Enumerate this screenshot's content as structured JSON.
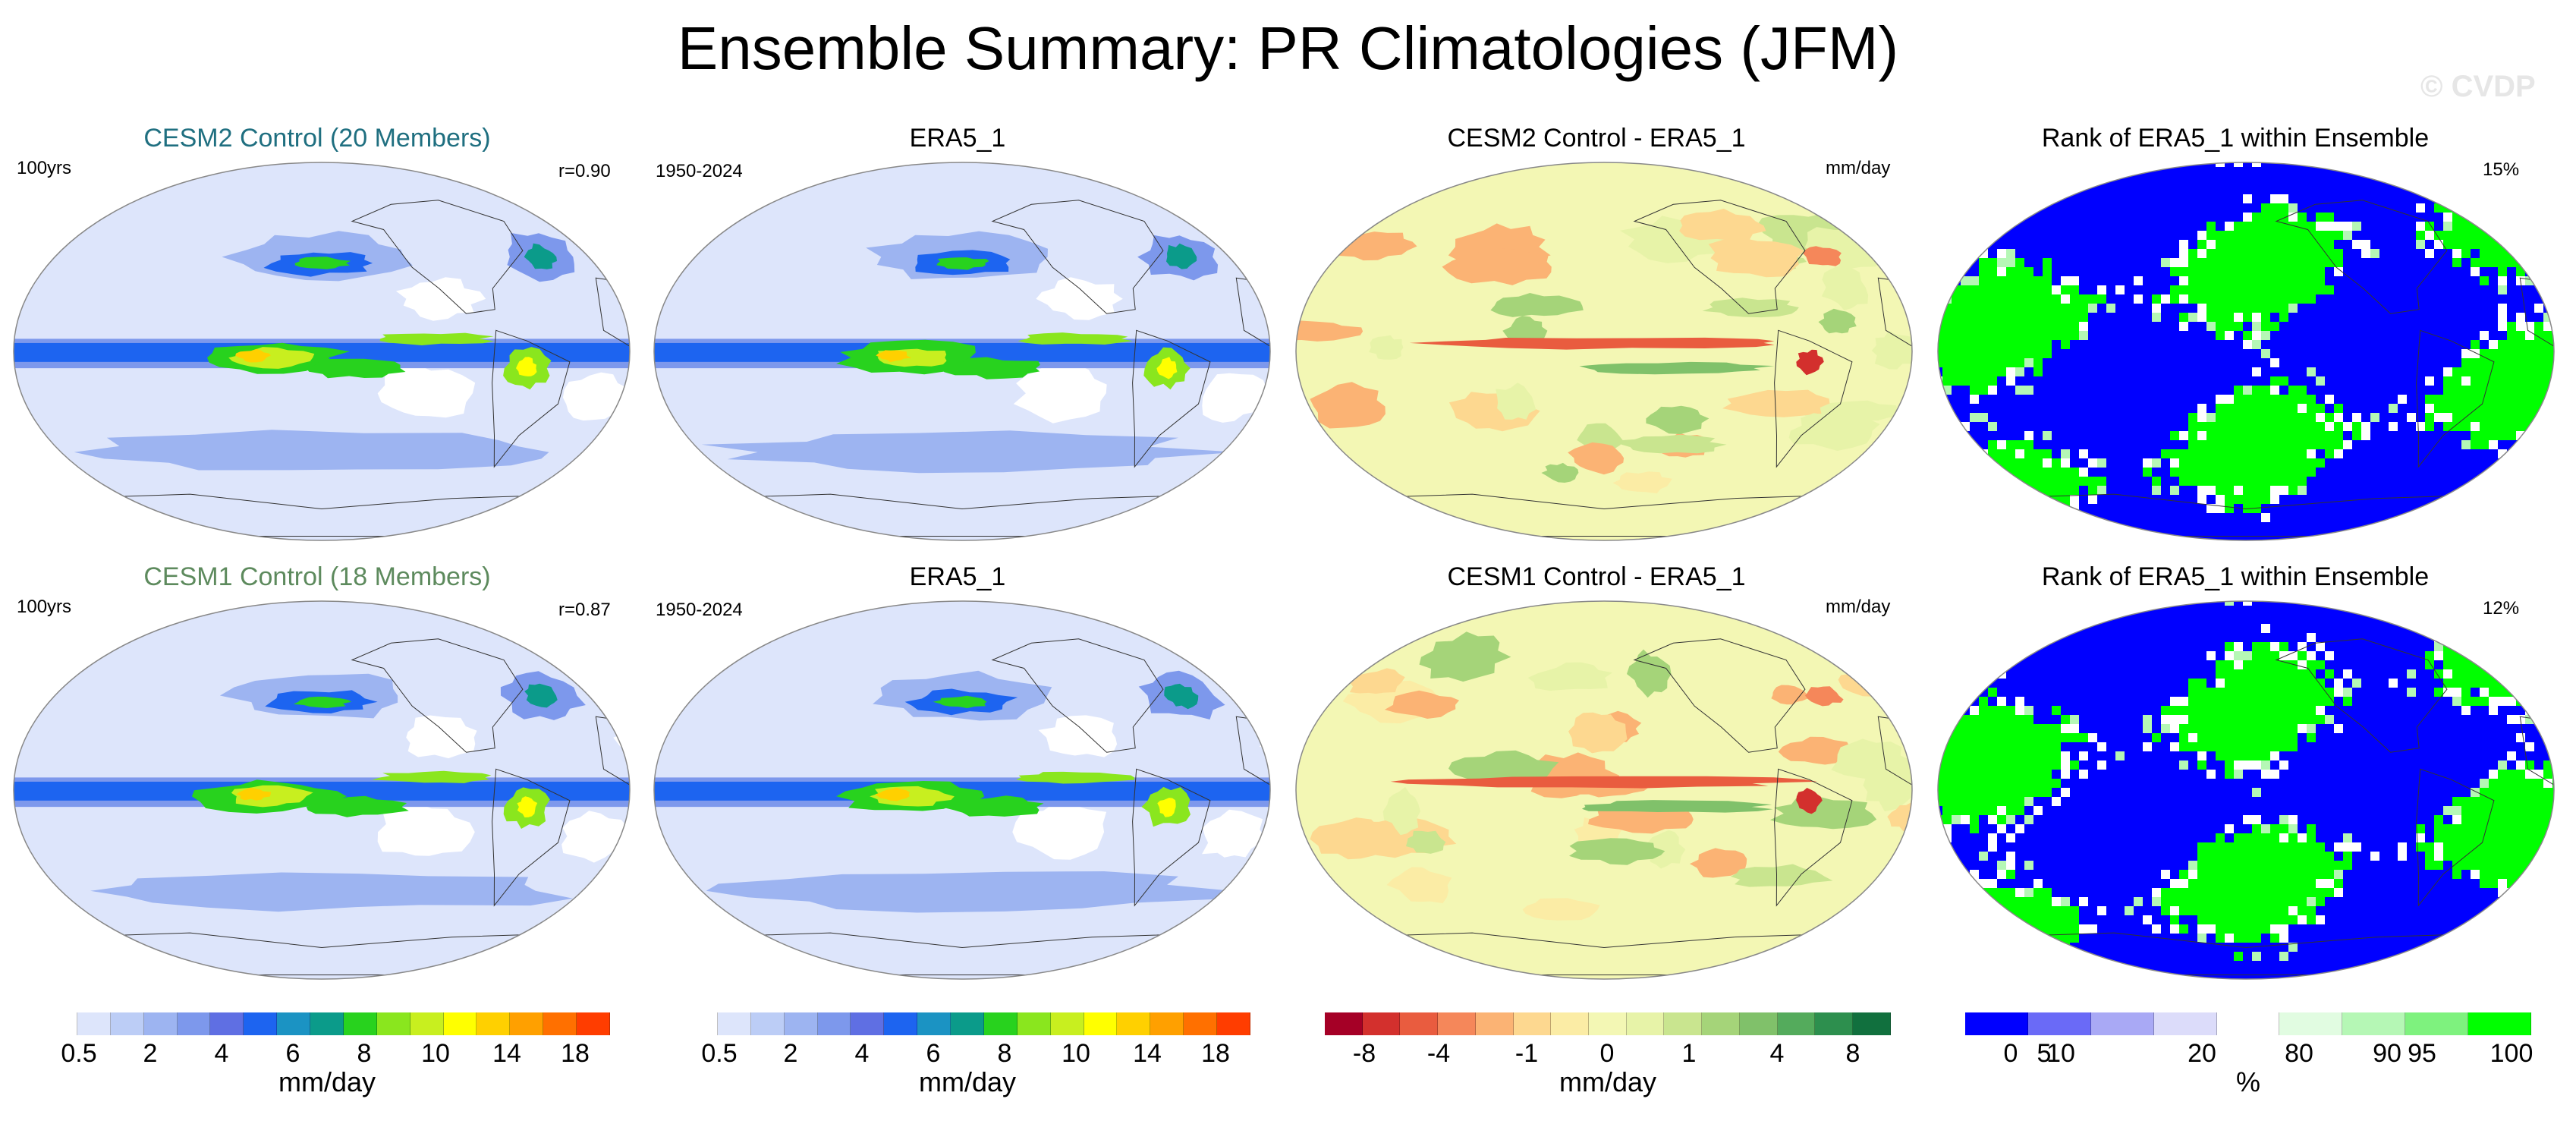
{
  "title": "Ensemble Summary: PR Climatologies (JFM)",
  "watermark": "© CVDP",
  "rows": [
    {
      "panels": [
        {
          "title": "CESM2 Control (20 Members)",
          "title_color": "#1f6f80",
          "left": "100yrs",
          "right": "r=0.90",
          "kind": "pr"
        },
        {
          "title": "ERA5_1",
          "title_color": "#000000",
          "left": "1950-2024",
          "right": "",
          "kind": "pr"
        },
        {
          "title": "CESM2 Control - ERA5_1",
          "title_color": "#000000",
          "left": "",
          "right": "mm/day",
          "kind": "diff"
        },
        {
          "title": "Rank of ERA5_1 within Ensemble",
          "title_color": "#000000",
          "left": "",
          "right": "15%",
          "kind": "rank"
        }
      ]
    },
    {
      "panels": [
        {
          "title": "CESM1 Control (18 Members)",
          "title_color": "#5d8a5d",
          "left": "100yrs",
          "right": "r=0.87",
          "kind": "pr"
        },
        {
          "title": "ERA5_1",
          "title_color": "#000000",
          "left": "1950-2024",
          "right": "",
          "kind": "pr"
        },
        {
          "title": "CESM1 Control - ERA5_1",
          "title_color": "#000000",
          "left": "",
          "right": "mm/day",
          "kind": "diff"
        },
        {
          "title": "Rank of ERA5_1 within Ensemble",
          "title_color": "#000000",
          "left": "",
          "right": "12%",
          "kind": "rank"
        }
      ]
    }
  ],
  "colorbars": [
    {
      "name": "pr-colorbar-1",
      "unit": "mm/day",
      "colors": [
        "#ffffff",
        "#dde5fb",
        "#bccdf6",
        "#9db4f1",
        "#7d98ec",
        "#5f6fe3",
        "#1d64f0",
        "#1b93c3",
        "#0b9b8a",
        "#28d21e",
        "#8ae61e",
        "#c8ef1f",
        "#ffff00",
        "#ffd000",
        "#ffa000",
        "#ff7000",
        "#ff3d00"
      ],
      "tick_labels": [
        "0.5",
        "2",
        "4",
        "6",
        "8",
        "10",
        "14",
        "18"
      ]
    },
    {
      "name": "pr-colorbar-2",
      "unit": "mm/day",
      "colors": [
        "#ffffff",
        "#dde5fb",
        "#bccdf6",
        "#9db4f1",
        "#7d98ec",
        "#5f6fe3",
        "#1d64f0",
        "#1b93c3",
        "#0b9b8a",
        "#28d21e",
        "#8ae61e",
        "#c8ef1f",
        "#ffff00",
        "#ffd000",
        "#ffa000",
        "#ff7000",
        "#ff3d00"
      ],
      "tick_labels": [
        "0.5",
        "2",
        "4",
        "6",
        "8",
        "10",
        "14",
        "18"
      ]
    },
    {
      "name": "diff-colorbar",
      "unit": "mm/day",
      "colors": [
        "#a50026",
        "#d3302d",
        "#e95c3f",
        "#f5875a",
        "#fbb374",
        "#fdd890",
        "#fbeca5",
        "#f3f7b4",
        "#e7f3a8",
        "#c9e58f",
        "#a5d479",
        "#80c16a",
        "#54ab5c",
        "#2d8f4e",
        "#11703e"
      ],
      "tick_labels": [
        "-8",
        "-4",
        "-1",
        "0",
        "1",
        "4",
        "8"
      ]
    },
    {
      "name": "rank-colorbar",
      "unit": "%",
      "colors": [
        "#0000ff",
        "#6a6af7",
        "#a9a9f5",
        "#dcdcfa",
        "#ffffff",
        "#e1fce1",
        "#b5f7b5",
        "#7ef27e",
        "#00ff00"
      ],
      "tick_labels": [
        "0",
        "5",
        "10",
        "20",
        "80",
        "90",
        "95",
        "100"
      ]
    }
  ],
  "chart_data": [
    {
      "type": "heatmap",
      "title": "CESM2 Control (20 Members)",
      "subtitle_left": "100yrs",
      "subtitle_right": "r=0.90",
      "variable": "PR",
      "units": "mm/day",
      "levels": [
        0.5,
        1,
        2,
        3,
        4,
        5,
        6,
        7,
        8,
        9,
        10,
        12,
        14,
        16,
        18
      ],
      "pattern_correlation": 0.9,
      "note": "Robinson projection, Pacific-centered"
    },
    {
      "type": "heatmap",
      "title": "ERA5_1",
      "subtitle_left": "1950-2024",
      "variable": "PR",
      "units": "mm/day",
      "levels": [
        0.5,
        1,
        2,
        3,
        4,
        5,
        6,
        7,
        8,
        9,
        10,
        12,
        14,
        16,
        18
      ]
    },
    {
      "type": "heatmap",
      "title": "CESM2 Control - ERA5_1",
      "subtitle_right": "mm/day",
      "units": "mm/day",
      "levels": [
        -8,
        -6,
        -4,
        -2,
        -1,
        -0.5,
        0,
        0.5,
        1,
        2,
        4,
        6,
        8
      ]
    },
    {
      "type": "heatmap",
      "title": "Rank of ERA5_1 within Ensemble",
      "subtitle_right": "15%",
      "units": "%",
      "levels": [
        0,
        5,
        10,
        20,
        80,
        90,
        95,
        100
      ]
    },
    {
      "type": "heatmap",
      "title": "CESM1 Control (18 Members)",
      "subtitle_left": "100yrs",
      "subtitle_right": "r=0.87",
      "variable": "PR",
      "units": "mm/day",
      "levels": [
        0.5,
        1,
        2,
        3,
        4,
        5,
        6,
        7,
        8,
        9,
        10,
        12,
        14,
        16,
        18
      ],
      "pattern_correlation": 0.87
    },
    {
      "type": "heatmap",
      "title": "ERA5_1",
      "subtitle_left": "1950-2024",
      "variable": "PR",
      "units": "mm/day",
      "levels": [
        0.5,
        1,
        2,
        3,
        4,
        5,
        6,
        7,
        8,
        9,
        10,
        12,
        14,
        16,
        18
      ]
    },
    {
      "type": "heatmap",
      "title": "CESM1 Control - ERA5_1",
      "subtitle_right": "mm/day",
      "units": "mm/day",
      "levels": [
        -8,
        -6,
        -4,
        -2,
        -1,
        -0.5,
        0,
        0.5,
        1,
        2,
        4,
        6,
        8
      ]
    },
    {
      "type": "heatmap",
      "title": "Rank of ERA5_1 within Ensemble",
      "subtitle_right": "12%",
      "units": "%",
      "levels": [
        0,
        5,
        10,
        20,
        80,
        90,
        95,
        100
      ]
    }
  ]
}
